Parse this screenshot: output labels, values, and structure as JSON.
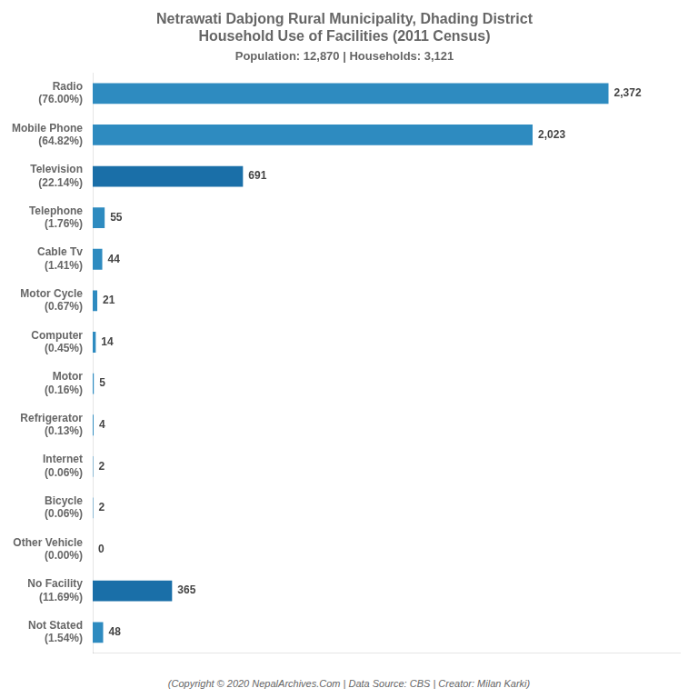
{
  "chart_data": {
    "type": "bar",
    "orientation": "horizontal",
    "title": "Netrawati Dabjong Rural Municipality, Dhading District\nHousehold Use of Facilities (2011 Census)",
    "subtitle": "Population: 12,870 | Households: 3,121",
    "annotations": [
      "(Copyright © 2020 NepalArchives.Com | Data Source: CBS | Creator: Milan Karki)"
    ],
    "categories": [
      "Radio\n(76.00%)",
      "Mobile Phone\n(64.82%)",
      "Television\n(22.14%)",
      "Telephone\n(1.76%)",
      "Cable Tv\n(1.41%)",
      "Motor Cycle\n(0.67%)",
      "Computer\n(0.45%)",
      "Motor\n(0.16%)",
      "Refrigerator\n(0.13%)",
      "Internet\n(0.06%)",
      "Bicycle\n(0.06%)",
      "Other Vehicle\n(0.00%)",
      "No Facility\n(11.69%)",
      "Not Stated\n(1.54%)"
    ],
    "values": [
      2372,
      2023,
      691,
      55,
      44,
      21,
      14,
      5,
      4,
      2,
      2,
      0,
      365,
      48
    ],
    "value_labels": [
      "2,372",
      "2,023",
      "691",
      "55",
      "44",
      "21",
      "14",
      "5",
      "4",
      "2",
      "2",
      "0",
      "365",
      "48"
    ],
    "colors": [
      "#2e8bc0",
      "#2e8bc0",
      "#1a6fa8",
      "#2e8bc0",
      "#2e8bc0",
      "#2e8bc0",
      "#2e8bc0",
      "#2e8bc0",
      "#2e8bc0",
      "#2e8bc0",
      "#2e8bc0",
      "#2e8bc0",
      "#1a6fa8",
      "#2e8bc0"
    ],
    "xlim": [
      0,
      2700
    ],
    "data_labels": true,
    "tick_labels": "y",
    "grid": false
  }
}
